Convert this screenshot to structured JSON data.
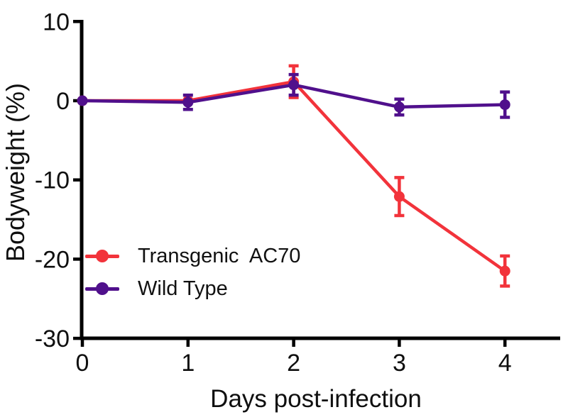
{
  "figure": {
    "background": "#ffffff",
    "text_color": "#0f0f0f"
  },
  "chart_data": {
    "type": "line",
    "title": "",
    "xlabel": "Days post-infection",
    "ylabel": "Bodyweight (%)",
    "x": [
      0,
      1,
      2,
      3,
      4
    ],
    "xticks": [
      0,
      1,
      2,
      3,
      4
    ],
    "yticks": [
      10,
      0,
      -10,
      -20,
      -30
    ],
    "xlim": [
      0,
      4.5
    ],
    "ylim": [
      -30,
      10
    ],
    "grid": false,
    "error_bars": true,
    "marker": "circle",
    "legend_position": "inside bottom-left",
    "axis_color": "#000000",
    "series": [
      {
        "name": "Transgenic  AC70",
        "color": "#F2333B",
        "values": [
          0,
          0,
          2.4,
          -12.1,
          -21.5
        ],
        "errors": [
          0,
          0,
          2.0,
          2.4,
          1.9
        ]
      },
      {
        "name": "Wild Type",
        "color": "#50108C",
        "values": [
          0,
          -0.2,
          2.0,
          -0.8,
          -0.5
        ],
        "errors": [
          0,
          0.9,
          1.3,
          1.0,
          1.6
        ]
      }
    ]
  }
}
